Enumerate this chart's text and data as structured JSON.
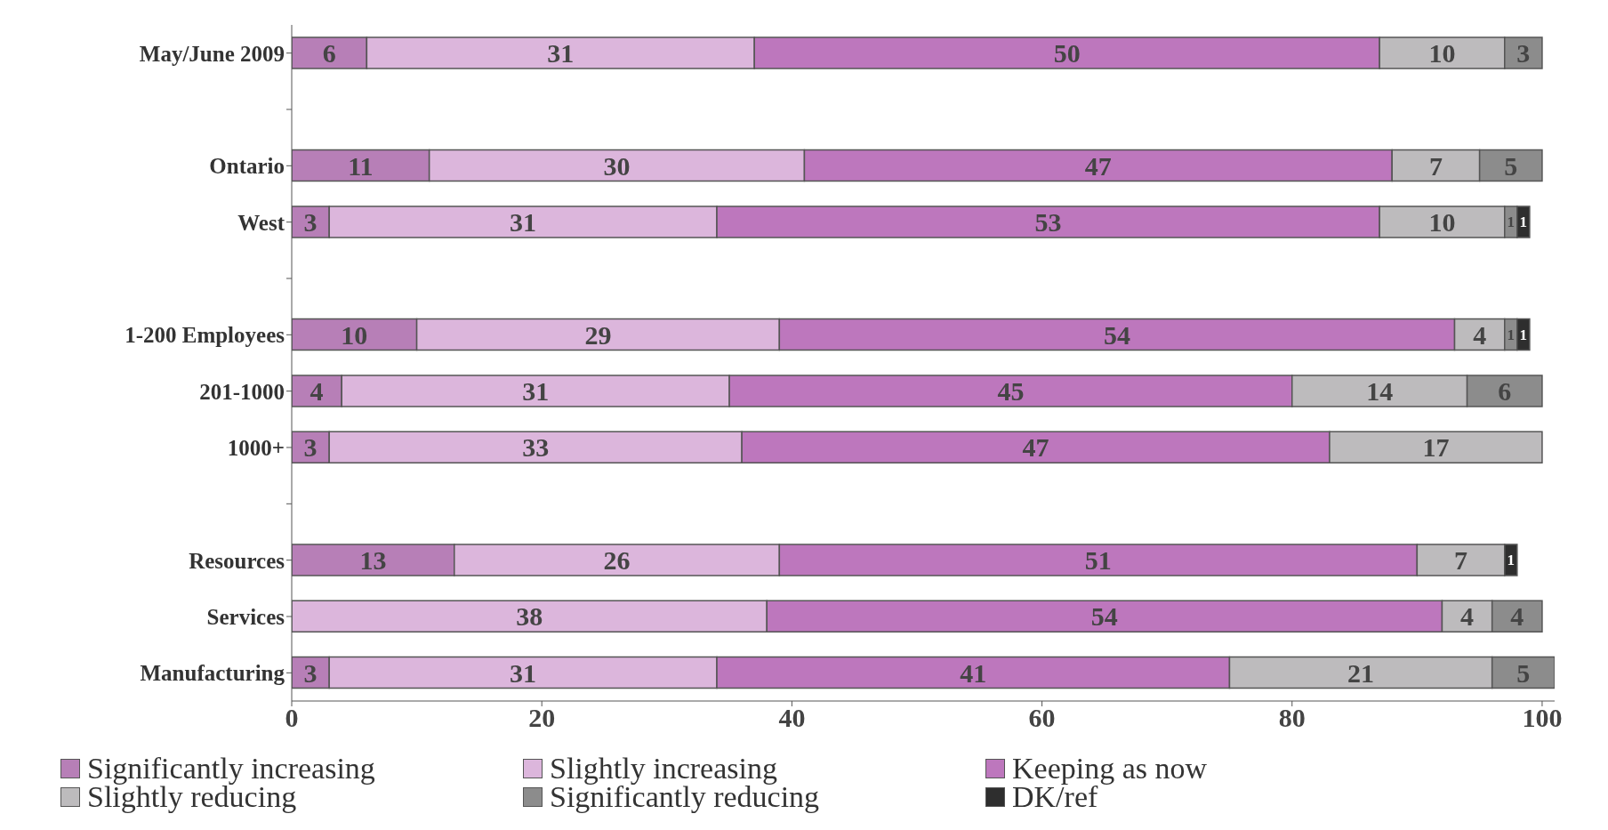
{
  "chart_data": {
    "type": "bar",
    "orientation": "horizontal",
    "stacked": true,
    "categories": [
      "May/June 2009",
      null,
      "Ontario",
      "West",
      null,
      "1-200 Employees",
      "201-1000",
      "1000+",
      null,
      "Resources",
      "Services",
      "Manufacturing"
    ],
    "series": [
      {
        "name": "Significantly increasing",
        "color": "#b77fb7",
        "values": [
          6,
          null,
          11,
          3,
          null,
          10,
          4,
          3,
          null,
          13,
          null,
          3
        ]
      },
      {
        "name": "Slightly increasing",
        "color": "#dcb6dc",
        "values": [
          31,
          null,
          30,
          31,
          null,
          29,
          31,
          33,
          null,
          26,
          38,
          31
        ]
      },
      {
        "name": "Keeping as now",
        "color": "#bd77bd",
        "values": [
          50,
          null,
          47,
          53,
          null,
          54,
          45,
          47,
          null,
          51,
          54,
          41
        ]
      },
      {
        "name": "Slightly reducing",
        "color": "#bdbbbd",
        "values": [
          10,
          null,
          7,
          10,
          null,
          4,
          14,
          17,
          null,
          7,
          4,
          21
        ]
      },
      {
        "name": "Significantly reducing",
        "color": "#8c8c8c",
        "values": [
          3,
          null,
          5,
          1,
          null,
          1,
          6,
          null,
          null,
          null,
          4,
          5
        ]
      },
      {
        "name": "DK/ref",
        "color": "#2e2e2e",
        "values": [
          null,
          null,
          null,
          1,
          null,
          1,
          null,
          null,
          null,
          1,
          null,
          null
        ]
      }
    ],
    "xlim": [
      0,
      101
    ],
    "xticks": [
      0,
      20,
      40,
      60,
      80,
      100
    ],
    "data_labels": true,
    "legend": "bottom",
    "grid": false
  }
}
